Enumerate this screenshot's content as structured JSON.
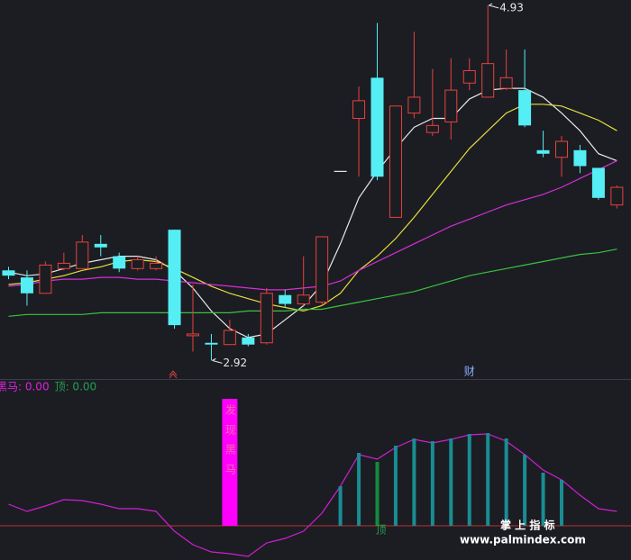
{
  "chart_data": [
    {
      "type": "candlestick",
      "ylim": [
        2.82,
        4.96
      ],
      "up_color": "#e8413c",
      "down_color": "#54eef4",
      "flat_color": "#e8e8e8",
      "open": [
        3.43,
        3.39,
        3.3,
        3.44,
        3.44,
        3.58,
        3.51,
        3.44,
        3.44,
        3.66,
        3.06,
        3.02,
        3.01,
        3.05,
        3.02,
        3.29,
        3.24,
        3.25,
        3.99,
        4.29,
        4.52,
        3.73,
        4.32,
        4.21,
        4.27,
        4.49,
        4.41,
        4.46,
        4.45,
        4.11,
        4.07,
        4.11,
        4.01,
        3.8
      ],
      "high": [
        3.45,
        3.43,
        3.48,
        3.53,
        3.63,
        3.63,
        3.53,
        3.51,
        3.51,
        3.66,
        3.35,
        3.07,
        3.15,
        3.07,
        3.33,
        3.32,
        3.51,
        3.62,
        3.99,
        4.47,
        4.83,
        4.36,
        4.78,
        4.57,
        4.63,
        4.63,
        4.93,
        4.68,
        4.68,
        4.22,
        4.19,
        4.14,
        4.01,
        3.91
      ],
      "low": [
        3.38,
        3.23,
        3.3,
        3.43,
        3.44,
        3.51,
        3.42,
        3.43,
        3.43,
        3.1,
        2.97,
        2.92,
        3.01,
        3.0,
        3.01,
        3.22,
        3.23,
        3.23,
        3.99,
        3.96,
        3.94,
        3.73,
        4.29,
        4.19,
        4.17,
        4.45,
        4.41,
        4.45,
        4.24,
        4.07,
        3.96,
        3.98,
        3.83,
        3.78
      ],
      "close": [
        3.4,
        3.3,
        3.46,
        3.47,
        3.59,
        3.56,
        3.44,
        3.49,
        3.47,
        3.12,
        3.07,
        3.01,
        3.09,
        3.01,
        3.3,
        3.24,
        3.29,
        3.62,
        3.99,
        4.39,
        3.96,
        4.36,
        4.41,
        4.25,
        4.45,
        4.56,
        4.6,
        4.52,
        4.25,
        4.09,
        4.16,
        4.02,
        3.84,
        3.9
      ],
      "series": [
        {
          "color": "#e8e8e8",
          "values": [
            3.42,
            3.4,
            3.41,
            3.44,
            3.47,
            3.49,
            3.51,
            3.51,
            3.49,
            3.43,
            3.33,
            3.2,
            3.1,
            3.05,
            3.07,
            3.15,
            3.23,
            3.35,
            3.58,
            3.84,
            3.99,
            4.12,
            4.24,
            4.29,
            4.29,
            4.4,
            4.45,
            4.46,
            4.46,
            4.41,
            4.32,
            4.22,
            4.09,
            4.05
          ]
        },
        {
          "color": "#e6de3c",
          "values": [
            3.35,
            3.36,
            3.38,
            3.4,
            3.43,
            3.45,
            3.48,
            3.49,
            3.48,
            3.44,
            3.39,
            3.34,
            3.3,
            3.27,
            3.24,
            3.22,
            3.2,
            3.23,
            3.3,
            3.43,
            3.51,
            3.61,
            3.73,
            3.86,
            3.99,
            4.12,
            4.22,
            4.32,
            4.37,
            4.37,
            4.36,
            4.32,
            4.28,
            4.22
          ]
        },
        {
          "color": "#d62fd6",
          "values": [
            3.34,
            3.35,
            3.37,
            3.38,
            3.38,
            3.39,
            3.39,
            3.38,
            3.38,
            3.37,
            3.36,
            3.35,
            3.34,
            3.33,
            3.32,
            3.32,
            3.33,
            3.34,
            3.37,
            3.43,
            3.48,
            3.53,
            3.58,
            3.63,
            3.68,
            3.72,
            3.76,
            3.8,
            3.83,
            3.86,
            3.9,
            3.95,
            4.0,
            4.05
          ]
        },
        {
          "color": "#3cc23c",
          "values": [
            3.17,
            3.18,
            3.18,
            3.18,
            3.18,
            3.19,
            3.19,
            3.19,
            3.19,
            3.19,
            3.19,
            3.19,
            3.19,
            3.2,
            3.2,
            3.2,
            3.21,
            3.21,
            3.23,
            3.25,
            3.27,
            3.29,
            3.31,
            3.34,
            3.37,
            3.4,
            3.42,
            3.44,
            3.46,
            3.48,
            3.5,
            3.52,
            3.53,
            3.55
          ]
        }
      ],
      "annotations": [
        {
          "text": "4.93",
          "value": 4.93,
          "at": "high"
        },
        {
          "text": "2.92",
          "value": 2.92,
          "at": "low"
        }
      ],
      "markers": [
        {
          "text": "财",
          "index": 25
        }
      ]
    },
    {
      "type": "indicator",
      "ylim": [
        -38,
        162
      ],
      "legend": [
        {
          "label": "黑马: 0.00",
          "color": "#e020e0"
        },
        {
          "label": "顶: 0.00",
          "color": "#20a050"
        }
      ],
      "series": [
        {
          "type": "line",
          "color": "#d01fd0",
          "values": [
            24,
            16,
            22,
            29,
            28,
            24,
            19,
            19,
            16,
            -6,
            -21,
            -29,
            -31,
            -34,
            -19,
            -14,
            -6,
            14,
            44,
            79,
            74,
            87,
            96,
            92,
            96,
            101,
            102,
            94,
            79,
            62,
            51,
            34,
            19,
            16
          ]
        },
        {
          "type": "bar",
          "color": "#ff00ff",
          "label": "发现黑马",
          "label_color": "#ff6aa0",
          "values": [
            null,
            null,
            null,
            null,
            null,
            null,
            null,
            null,
            null,
            null,
            null,
            null,
            141,
            null,
            null,
            null,
            null,
            null,
            null,
            null,
            null,
            null,
            null,
            null,
            null,
            null,
            null,
            null,
            null,
            null,
            null,
            null,
            null,
            null
          ]
        },
        {
          "type": "bar",
          "color": "#1a8c93",
          "values": [
            null,
            null,
            null,
            null,
            null,
            null,
            null,
            null,
            null,
            null,
            null,
            null,
            null,
            null,
            null,
            null,
            null,
            null,
            44,
            81,
            null,
            89,
            97,
            94,
            97,
            102,
            103,
            97,
            79,
            59,
            51,
            null,
            null,
            null
          ]
        },
        {
          "type": "bar",
          "color": "#148a3c",
          "label": "顶",
          "label_color": "#1fa04a",
          "values": [
            null,
            null,
            null,
            null,
            null,
            null,
            null,
            null,
            null,
            null,
            null,
            null,
            null,
            null,
            null,
            null,
            null,
            null,
            null,
            null,
            71,
            null,
            null,
            null,
            null,
            null,
            null,
            null,
            null,
            null,
            null,
            null,
            null,
            null
          ]
        }
      ],
      "watermark": [
        "掌 上 指 标",
        "www.palmindex.com"
      ]
    }
  ]
}
